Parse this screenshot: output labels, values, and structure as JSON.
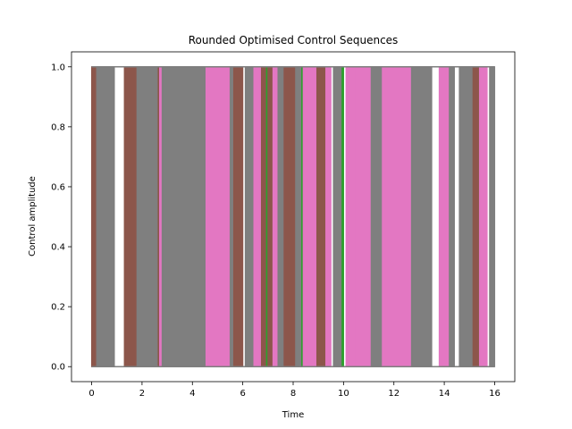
{
  "chart_data": {
    "type": "area",
    "title": "Rounded Optimised Control Sequences",
    "xlabel": "Time",
    "ylabel": "Control amplitude",
    "xlim": [
      -0.8,
      16.8
    ],
    "ylim": [
      -0.05,
      1.05
    ],
    "xticks": [
      0,
      2,
      4,
      6,
      8,
      10,
      12,
      14,
      16
    ],
    "xtick_labels": [
      "0",
      "2",
      "4",
      "6",
      "8",
      "10",
      "12",
      "14",
      "16"
    ],
    "yticks": [
      0.0,
      0.2,
      0.4,
      0.6,
      0.8,
      1.0
    ],
    "ytick_labels": [
      "0.0",
      "0.2",
      "0.4",
      "0.6",
      "0.8",
      "1.0"
    ],
    "grid": false,
    "legend": "none",
    "series": [
      {
        "color": "#2ca02c",
        "on_intervals": [
          [
            6.9,
            7.0
          ],
          [
            8.3,
            8.4
          ],
          [
            9.9,
            10.0
          ]
        ]
      },
      {
        "color": "#8c564b",
        "on_intervals": [
          [
            0.0,
            0.5
          ],
          [
            1.3,
            1.8
          ],
          [
            2.55,
            2.7
          ],
          [
            5.6,
            6.0
          ],
          [
            6.7,
            6.9
          ],
          [
            7.0,
            7.2
          ],
          [
            7.6,
            8.1
          ],
          [
            8.9,
            9.3
          ],
          [
            15.1,
            15.5
          ]
        ]
      },
      {
        "color": "#e377c2",
        "on_intervals": [
          [
            0.5,
            0.6
          ],
          [
            2.7,
            2.8
          ],
          [
            4.5,
            5.5
          ],
          [
            6.4,
            6.7
          ],
          [
            7.2,
            7.4
          ],
          [
            8.4,
            8.9
          ],
          [
            9.3,
            9.5
          ],
          [
            10.1,
            10.5
          ],
          [
            10.5,
            11.1
          ],
          [
            11.5,
            12.7
          ],
          [
            13.8,
            14.2
          ],
          [
            15.4,
            15.7
          ]
        ]
      },
      {
        "color": "#7f7f7f",
        "on_intervals": [
          [
            0.2,
            0.9
          ],
          [
            1.8,
            2.6
          ],
          [
            2.8,
            4.5
          ],
          [
            5.5,
            5.6
          ],
          [
            6.1,
            6.4
          ],
          [
            7.4,
            7.6
          ],
          [
            8.1,
            8.3
          ],
          [
            9.6,
            9.9
          ],
          [
            11.1,
            11.5
          ],
          [
            12.7,
            13.5
          ],
          [
            14.2,
            14.4
          ],
          [
            14.6,
            15.1
          ],
          [
            15.8,
            16.0
          ]
        ]
      }
    ]
  }
}
